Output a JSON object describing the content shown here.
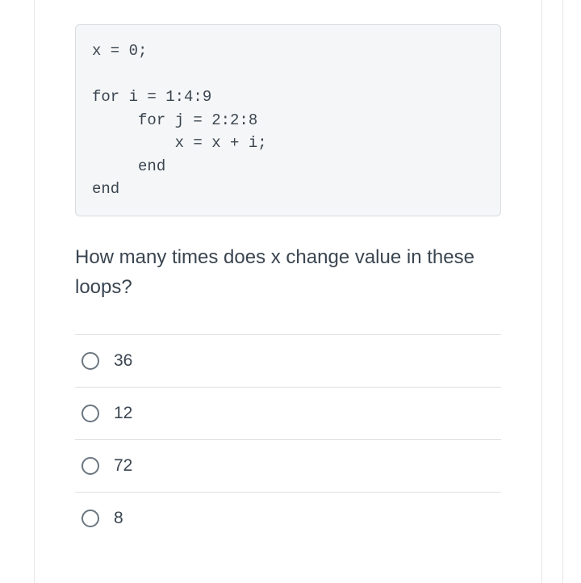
{
  "code_block": {
    "text": "x = 0;\n\nfor i = 1:4:9\n     for j = 2:2:8\n         x = x + i;\n     end\nend",
    "background_color": "#f5f6f7",
    "border_color": "#d8dce0",
    "text_color": "#3a4550",
    "font_family": "monospace",
    "font_size": 19
  },
  "question": {
    "text": "How many times does x change value in these loops?",
    "text_color": "#3a4550",
    "font_size": 24
  },
  "options": [
    {
      "label": "36"
    },
    {
      "label": "12"
    },
    {
      "label": "72"
    },
    {
      "label": "8"
    }
  ],
  "styling": {
    "radio_border_color": "#6b7680",
    "divider_color": "#e0e0e0",
    "option_font_size": 21,
    "option_text_color": "#3a4550"
  }
}
